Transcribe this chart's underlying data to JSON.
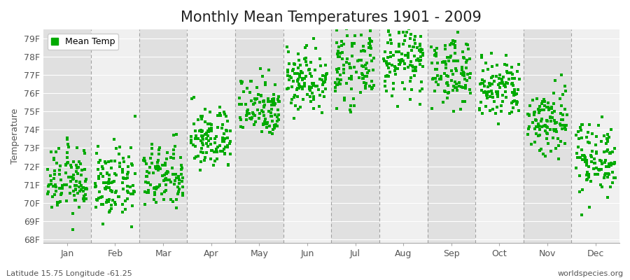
{
  "title": "Monthly Mean Temperatures 1901 - 2009",
  "ylabel": "Temperature",
  "xlabel_labels": [
    "Jan",
    "Feb",
    "Mar",
    "Apr",
    "May",
    "Jun",
    "Jul",
    "Aug",
    "Sep",
    "Oct",
    "Nov",
    "Dec"
  ],
  "ytick_labels": [
    "68F",
    "69F",
    "70F",
    "71F",
    "72F",
    "73F",
    "74F",
    "75F",
    "76F",
    "77F",
    "78F",
    "79F"
  ],
  "ytick_values": [
    68,
    69,
    70,
    71,
    72,
    73,
    74,
    75,
    76,
    77,
    78,
    79
  ],
  "ylim": [
    67.8,
    79.5
  ],
  "dot_color": "#00aa00",
  "background_color": "#ffffff",
  "plot_bg_color_odd": "#f0f0f0",
  "plot_bg_color_even": "#e0e0e0",
  "grid_color": "#ffffff",
  "dashed_line_color": "#999999",
  "legend_label": "Mean Temp",
  "footnote_left": "Latitude 15.75 Longitude -61.25",
  "footnote_right": "worldspecies.org",
  "title_fontsize": 15,
  "axis_fontsize": 9,
  "footnote_fontsize": 8,
  "years": 109,
  "monthly_means": [
    71.2,
    71.0,
    71.4,
    73.5,
    75.3,
    76.8,
    77.5,
    77.8,
    77.2,
    76.2,
    74.5,
    72.5
  ],
  "monthly_stds": [
    0.9,
    0.95,
    0.9,
    0.85,
    0.85,
    0.9,
    1.0,
    0.95,
    0.9,
    0.9,
    1.0,
    1.0
  ]
}
